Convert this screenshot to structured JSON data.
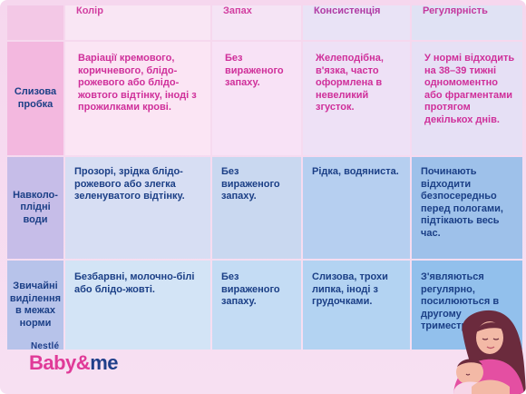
{
  "table": {
    "headers": [
      "Колір",
      "Запах",
      "Консистенція",
      "Регулярність"
    ],
    "rows": [
      {
        "label": "Слизова пробка",
        "cells": [
          "Варіації кремового, коричневого, блідо-рожевого або блідо-жовтого відтінку, іноді з прожилками крові.",
          "Без вираженого запаху.",
          "Желеподібна, в'язка, часто оформлена в невеликий згусток.",
          "У нормі відходить на 38–39 тижні одномоментно або фрагментами протягом декількох днів."
        ]
      },
      {
        "label": "Навколо-плідні води",
        "cells": [
          "Прозорі, зрідка блідо-рожевого або злегка зеленуватого відтінку.",
          "Без вираженого запаху.",
          "Рідка, водяниста.",
          "Починають відходити безпосередньо перед пологами, підтікають весь час."
        ]
      },
      {
        "label": "Звичайні виділення в межах норми",
        "cells": [
          "Безбарвні, молочно-білі або блідо-жовті.",
          "Без вираженого запаху.",
          "Слизова, трохи липка, іноді з грудочками.",
          "З'являються регулярно, посилюються в другому триместрі."
        ]
      }
    ]
  },
  "logo": {
    "company": "Nestlé",
    "brand_left": "Baby",
    "brand_amp": "&",
    "brand_right": "me"
  },
  "colors": {
    "accent_pink": "#d23ea0",
    "navy": "#1b3f86",
    "background": "#f6d7ee"
  },
  "illustration": "mother-and-baby-illustration"
}
